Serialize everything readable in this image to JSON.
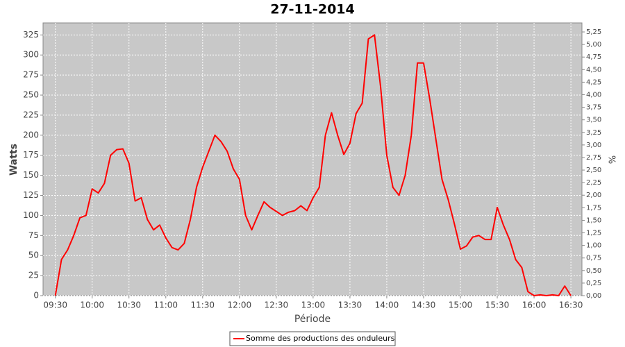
{
  "chart_data": {
    "type": "line",
    "title": "27-11-2014",
    "x_label": "Période",
    "y_label": "Watts",
    "y2_label": "%",
    "x": [
      "09:30",
      "09:35",
      "09:40",
      "09:45",
      "09:50",
      "09:55",
      "10:00",
      "10:05",
      "10:10",
      "10:15",
      "10:20",
      "10:25",
      "10:30",
      "10:35",
      "10:40",
      "10:45",
      "10:50",
      "10:55",
      "11:00",
      "11:05",
      "11:10",
      "11:15",
      "11:20",
      "11:25",
      "11:30",
      "11:35",
      "11:40",
      "11:45",
      "11:50",
      "11:55",
      "12:00",
      "12:05",
      "12:10",
      "12:15",
      "12:20",
      "12:25",
      "12:30",
      "12:35",
      "12:40",
      "12:45",
      "12:50",
      "12:55",
      "13:00",
      "13:05",
      "13:10",
      "13:15",
      "13:20",
      "13:25",
      "13:30",
      "13:35",
      "13:40",
      "13:45",
      "13:50",
      "13:55",
      "14:00",
      "14:05",
      "14:10",
      "14:15",
      "14:20",
      "14:25",
      "14:30",
      "14:35",
      "14:40",
      "14:45",
      "14:50",
      "14:55",
      "15:00",
      "15:05",
      "15:10",
      "15:15",
      "15:20",
      "15:25",
      "15:30",
      "15:35",
      "15:40",
      "15:45",
      "15:50",
      "15:55",
      "16:00",
      "16:05",
      "16:10",
      "16:15",
      "16:20",
      "16:25",
      "16:30"
    ],
    "series": [
      {
        "name": "Somme des productions des onduleurs",
        "color": "#ff0000",
        "values": [
          0,
          45,
          57,
          75,
          97,
          100,
          133,
          128,
          140,
          175,
          182,
          183,
          165,
          118,
          122,
          95,
          82,
          88,
          72,
          60,
          57,
          65,
          95,
          135,
          160,
          180,
          200,
          192,
          180,
          158,
          145,
          100,
          82,
          100,
          117,
          110,
          105,
          100,
          104,
          106,
          112,
          106,
          122,
          135,
          200,
          228,
          200,
          176,
          190,
          227,
          240,
          320,
          325,
          260,
          175,
          135,
          125,
          150,
          200,
          290,
          290,
          245,
          195,
          145,
          120,
          90,
          58,
          62,
          73,
          75,
          70,
          70,
          110,
          88,
          70,
          45,
          35,
          5,
          0,
          1,
          0,
          1,
          0,
          12,
          0
        ]
      }
    ],
    "xlim": [
      "09:20",
      "16:39"
    ],
    "xticks": [
      "09:30",
      "10:00",
      "10:30",
      "11:00",
      "11:30",
      "12:00",
      "12:30",
      "13:00",
      "13:30",
      "14:00",
      "14:30",
      "15:00",
      "15:30",
      "16:00",
      "16:30"
    ],
    "ylim": [
      0,
      340
    ],
    "yticks": [
      0,
      25,
      50,
      75,
      100,
      125,
      150,
      175,
      200,
      225,
      250,
      275,
      300,
      325
    ],
    "y2lim": [
      0,
      5.43
    ],
    "y2ticks": [
      {
        "value": 0,
        "label": "0,00"
      },
      {
        "value": 0.25,
        "label": "0,25"
      },
      {
        "value": 0.5,
        "label": "0,50"
      },
      {
        "value": 0.75,
        "label": "0,75"
      },
      {
        "value": 1,
        "label": "1,00"
      },
      {
        "value": 1.25,
        "label": "1,25"
      },
      {
        "value": 1.5,
        "label": "1,50"
      },
      {
        "value": 1.75,
        "label": "1,75"
      },
      {
        "value": 2,
        "label": "2,00"
      },
      {
        "value": 2.25,
        "label": "2,25"
      },
      {
        "value": 2.5,
        "label": "2,50"
      },
      {
        "value": 2.75,
        "label": "2,75"
      },
      {
        "value": 3,
        "label": "3,00"
      },
      {
        "value": 3.25,
        "label": "3,25"
      },
      {
        "value": 3.5,
        "label": "3,50"
      },
      {
        "value": 3.75,
        "label": "3,75"
      },
      {
        "value": 4,
        "label": "4,00"
      },
      {
        "value": 4.25,
        "label": "4,25"
      },
      {
        "value": 4.5,
        "label": "4,50"
      },
      {
        "value": 4.75,
        "label": "4,75"
      },
      {
        "value": 5,
        "label": "5,00"
      },
      {
        "value": 5.25,
        "label": "5,25"
      }
    ],
    "grid": true,
    "legend": "bottom"
  }
}
